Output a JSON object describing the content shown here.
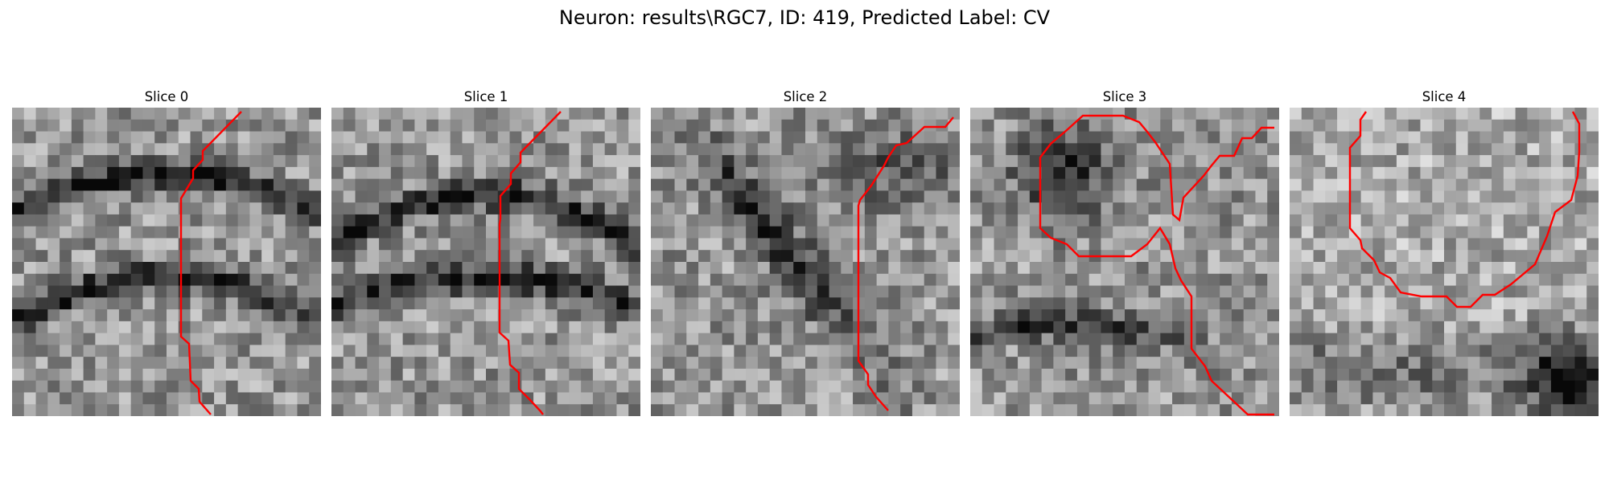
{
  "figure": {
    "suptitle": "Neuron: results\\RGC7, ID: 419, Predicted Label: CV"
  },
  "panels": [
    {
      "title": "Slice 0"
    },
    {
      "title": "Slice 1"
    },
    {
      "title": "Slice 2"
    },
    {
      "title": "Slice 3"
    },
    {
      "title": "Slice 4"
    }
  ],
  "colors": {
    "contour": "#ff0000",
    "colormap": "gray"
  }
}
